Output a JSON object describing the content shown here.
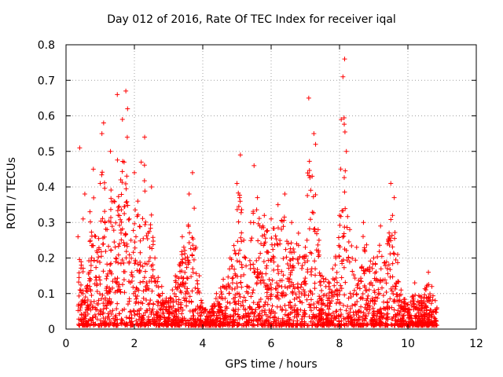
{
  "chart_data": {
    "type": "scatter",
    "title": "Day 012 of 2016, Rate Of TEC Index for receiver iqal",
    "xlabel": "GPS time / hours",
    "ylabel": "ROTI / TECUs",
    "xlim": [
      0,
      12
    ],
    "ylim": [
      0,
      0.8
    ],
    "xticks": [
      0,
      2,
      4,
      6,
      8,
      10,
      12
    ],
    "yticks": [
      0,
      0.1,
      0.2,
      0.3,
      0.4,
      0.5,
      0.6,
      0.7,
      0.8
    ],
    "xtick_labels": [
      "0",
      "2",
      "4",
      "6",
      "8",
      "10",
      "12"
    ],
    "ytick_labels": [
      "0",
      "0.1",
      "0.2",
      "0.3",
      "0.4",
      "0.5",
      "0.6",
      "0.7",
      "0.8"
    ],
    "grid": true,
    "marker": "+",
    "color": "#ff0000",
    "series": [
      {
        "name": "ROTI",
        "x": [
          0.35,
          0.4,
          0.45,
          0.5,
          0.55,
          0.6,
          0.7,
          0.8,
          0.9,
          1.0,
          1.05,
          1.1,
          1.2,
          1.3,
          1.4,
          1.5,
          1.6,
          1.65,
          1.7,
          1.75,
          1.8,
          1.85,
          1.9,
          2.0,
          2.1,
          2.2,
          2.3,
          2.4,
          2.5,
          2.6,
          2.8,
          3.0,
          3.2,
          3.4,
          3.6,
          3.7,
          3.75,
          3.8,
          3.9,
          4.0,
          4.2,
          4.4,
          4.6,
          4.8,
          5.0,
          5.1,
          5.2,
          5.4,
          5.5,
          5.6,
          5.8,
          6.0,
          6.2,
          6.4,
          6.5,
          6.6,
          6.8,
          7.0,
          7.1,
          7.2,
          7.25,
          7.3,
          7.4,
          7.6,
          7.8,
          8.0,
          8.05,
          8.1,
          8.15,
          8.2,
          8.3,
          8.5,
          8.7,
          9.0,
          9.2,
          9.4,
          9.5,
          9.55,
          9.6,
          9.7,
          9.8,
          10.0,
          10.2,
          10.4,
          10.6,
          10.7,
          10.8,
          10.85
        ],
        "y": [
          0.26,
          0.51,
          0.18,
          0.31,
          0.38,
          0.12,
          0.33,
          0.45,
          0.22,
          0.41,
          0.55,
          0.58,
          0.28,
          0.5,
          0.36,
          0.66,
          0.42,
          0.59,
          0.47,
          0.67,
          0.62,
          0.31,
          0.25,
          0.44,
          0.36,
          0.47,
          0.54,
          0.27,
          0.4,
          0.2,
          0.12,
          0.08,
          0.15,
          0.26,
          0.38,
          0.44,
          0.34,
          0.23,
          0.15,
          0.06,
          0.05,
          0.1,
          0.14,
          0.2,
          0.41,
          0.49,
          0.25,
          0.3,
          0.46,
          0.37,
          0.32,
          0.31,
          0.35,
          0.38,
          0.24,
          0.3,
          0.27,
          0.23,
          0.65,
          0.43,
          0.55,
          0.52,
          0.25,
          0.14,
          0.17,
          0.32,
          0.59,
          0.71,
          0.76,
          0.5,
          0.28,
          0.23,
          0.3,
          0.2,
          0.29,
          0.24,
          0.41,
          0.32,
          0.37,
          0.21,
          0.11,
          0.07,
          0.13,
          0.09,
          0.16,
          0.12,
          0.08,
          0.06
        ]
      }
    ]
  }
}
